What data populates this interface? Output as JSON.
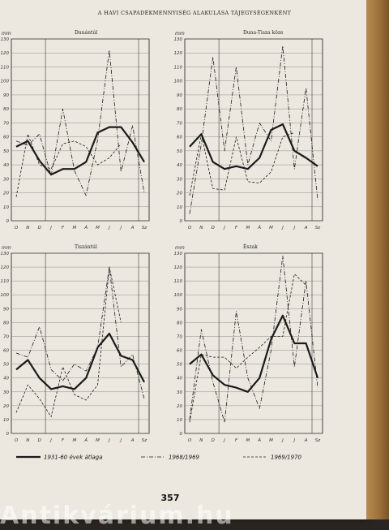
{
  "header": {
    "title": "A HAVI CSAPADÉKMENNYISÉG ALAKULÁSA TÁJEGYSÉGENKÉNT"
  },
  "page_number": "357",
  "watermark": "Antikvárium.hu",
  "colors": {
    "paper": "#ece8df",
    "ink": "#1a1a1a",
    "grid": "#777777"
  },
  "legend": [
    {
      "label": "1931-60 évek átlaga",
      "style": "solid"
    },
    {
      "label": "1968/1969",
      "style": "dashdot"
    },
    {
      "label": "1969/1970",
      "style": "dashed"
    }
  ],
  "chart_data": [
    {
      "type": "line",
      "title": "Dunántúl",
      "ylabel": "mm",
      "ylim": [
        0,
        130
      ],
      "yticks": [
        0,
        10,
        20,
        30,
        40,
        50,
        60,
        70,
        80,
        90,
        100,
        110,
        120,
        130
      ],
      "categories": [
        "O",
        "N",
        "D",
        "J",
        "F",
        "M",
        "Á",
        "M",
        "J",
        "J",
        "A",
        "Sz"
      ],
      "grid": true,
      "series": [
        {
          "name": "1931-60 évek átlaga",
          "values": [
            53,
            57,
            43,
            33,
            37,
            37,
            42,
            63,
            67,
            67,
            56,
            42
          ]
        },
        {
          "name": "1968/1969",
          "values": [
            57,
            54,
            62,
            32,
            80,
            36,
            18,
            58,
            122,
            35,
            68,
            20
          ]
        },
        {
          "name": "1969/1970",
          "values": [
            17,
            62,
            40,
            37,
            55,
            57,
            53,
            40,
            45,
            55,
            null,
            null
          ]
        }
      ]
    },
    {
      "type": "line",
      "title": "Duna-Tisza köze",
      "ylabel": "mm",
      "ylim": [
        0,
        130
      ],
      "yticks": [
        0,
        10,
        20,
        30,
        40,
        50,
        60,
        70,
        80,
        90,
        100,
        110,
        120,
        130
      ],
      "categories": [
        "O",
        "N",
        "D",
        "J",
        "F",
        "M",
        "Á",
        "M",
        "J",
        "J",
        "A",
        "Sz"
      ],
      "grid": true,
      "series": [
        {
          "name": "1931-60 évek átlaga",
          "values": [
            53,
            62,
            42,
            37,
            39,
            37,
            45,
            65,
            69,
            50,
            45,
            39
          ]
        },
        {
          "name": "1968/1969",
          "values": [
            5,
            55,
            117,
            50,
            110,
            40,
            70,
            57,
            125,
            37,
            95,
            15
          ]
        },
        {
          "name": "1969/1970",
          "values": [
            18,
            62,
            23,
            22,
            60,
            28,
            27,
            35,
            60,
            63,
            null,
            null
          ]
        }
      ]
    },
    {
      "type": "line",
      "title": "Tiszántúl",
      "ylabel": "mm",
      "ylim": [
        0,
        130
      ],
      "yticks": [
        0,
        10,
        20,
        30,
        40,
        50,
        60,
        70,
        80,
        90,
        100,
        110,
        120,
        130
      ],
      "categories": [
        "O",
        "N",
        "D",
        "J",
        "F",
        "M",
        "Á",
        "M",
        "J",
        "J",
        "A",
        "Sz"
      ],
      "grid": true,
      "series": [
        {
          "name": "1931-60 évek átlaga",
          "values": [
            46,
            53,
            40,
            32,
            34,
            32,
            40,
            62,
            72,
            56,
            53,
            37
          ]
        },
        {
          "name": "1968/1969",
          "values": [
            58,
            55,
            77,
            46,
            38,
            50,
            45,
            62,
            120,
            48,
            57,
            25
          ]
        },
        {
          "name": "1969/1970",
          "values": [
            15,
            35,
            25,
            12,
            48,
            28,
            24,
            35,
            120,
            80,
            null,
            null
          ]
        }
      ]
    },
    {
      "type": "line",
      "title": "Észak",
      "ylabel": "mm",
      "ylim": [
        0,
        130
      ],
      "yticks": [
        0,
        10,
        20,
        30,
        40,
        50,
        60,
        70,
        80,
        90,
        100,
        110,
        120,
        130
      ],
      "categories": [
        "O",
        "N",
        "D",
        "J",
        "F",
        "M",
        "Á",
        "M",
        "J",
        "J",
        "A",
        "Sz"
      ],
      "grid": true,
      "series": [
        {
          "name": "1931-60 évek átlaga",
          "values": [
            50,
            57,
            42,
            35,
            33,
            30,
            40,
            68,
            85,
            65,
            65,
            40
          ]
        },
        {
          "name": "1968/1969",
          "values": [
            10,
            75,
            37,
            8,
            88,
            40,
            18,
            60,
            128,
            48,
            110,
            33
          ]
        },
        {
          "name": "1969/1970",
          "values": [
            8,
            57,
            55,
            55,
            47,
            55,
            62,
            70,
            70,
            115,
            107,
            null
          ]
        }
      ]
    }
  ]
}
